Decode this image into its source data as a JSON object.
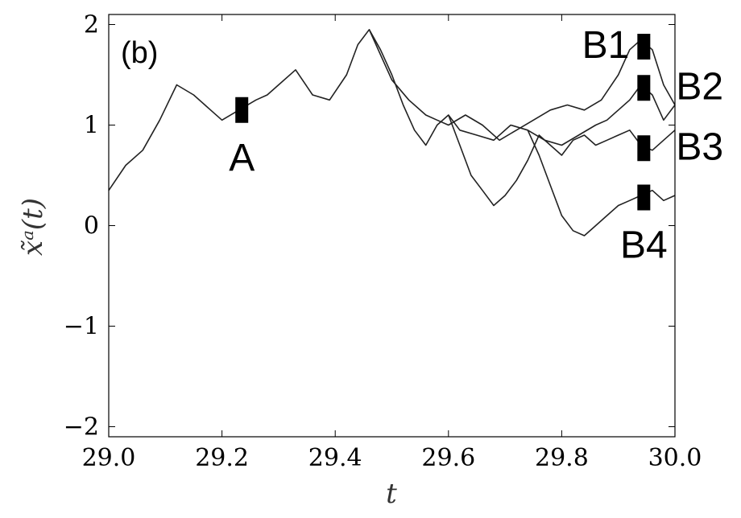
{
  "chart_data": {
    "type": "line",
    "panel_label": "(b)",
    "xlabel": "t",
    "ylabel": "x̃ᵃ(t)",
    "xlim": [
      29.0,
      30.0
    ],
    "ylim": [
      -2.1,
      2.1
    ],
    "x_ticks": [
      29.0,
      29.2,
      29.4,
      29.6,
      29.8,
      30.0
    ],
    "x_tick_labels": [
      "29.0",
      "29.2",
      "29.4",
      "29.6",
      "29.8",
      "30.0"
    ],
    "y_ticks": [
      -2,
      -1,
      0,
      1,
      2
    ],
    "y_tick_labels": [
      "−2",
      "−1",
      "0",
      "1",
      "2"
    ],
    "grid": false,
    "line_color": "#222222",
    "series": [
      {
        "x": [
          29.0,
          29.03,
          29.06,
          29.09,
          29.12,
          29.15,
          29.18,
          29.2,
          29.23,
          29.26,
          29.28,
          29.3,
          29.33,
          29.36,
          29.39,
          29.42,
          29.44,
          29.46,
          29.48,
          29.5,
          29.53,
          29.56,
          29.58,
          29.6,
          29.63,
          29.66,
          29.69,
          29.72,
          29.75,
          29.78,
          29.81,
          29.84,
          29.87,
          29.9,
          29.92,
          29.94,
          29.96,
          29.98,
          30.0
        ],
        "y": [
          0.35,
          0.6,
          0.75,
          1.05,
          1.4,
          1.3,
          1.15,
          1.05,
          1.15,
          1.25,
          1.3,
          1.4,
          1.55,
          1.3,
          1.25,
          1.5,
          1.8,
          1.95,
          1.7,
          1.45,
          1.25,
          1.1,
          1.05,
          1.0,
          1.1,
          1.0,
          0.85,
          0.95,
          1.05,
          1.15,
          1.2,
          1.15,
          1.25,
          1.5,
          1.75,
          1.85,
          1.75,
          1.4,
          1.2
        ]
      },
      {
        "x": [
          29.46,
          29.48,
          29.5,
          29.52,
          29.54,
          29.56,
          29.58,
          29.6,
          29.62,
          29.65,
          29.68,
          29.71,
          29.74,
          29.77,
          29.8,
          29.83,
          29.86,
          29.88,
          29.9,
          29.92,
          29.94,
          29.96,
          29.98,
          30.0
        ],
        "y": [
          1.95,
          1.75,
          1.5,
          1.2,
          0.95,
          0.8,
          1.0,
          1.1,
          0.95,
          0.9,
          0.85,
          1.0,
          0.95,
          0.85,
          0.8,
          0.9,
          1.0,
          1.05,
          1.15,
          1.25,
          1.4,
          1.3,
          1.05,
          1.2
        ]
      },
      {
        "x": [
          29.6,
          29.62,
          29.64,
          29.66,
          29.68,
          29.7,
          29.72,
          29.74,
          29.76,
          29.78,
          29.8,
          29.82,
          29.84,
          29.86,
          29.88,
          29.9,
          29.92,
          29.94,
          29.96,
          29.98,
          30.0
        ],
        "y": [
          1.1,
          0.8,
          0.5,
          0.35,
          0.2,
          0.3,
          0.45,
          0.65,
          0.9,
          0.8,
          0.7,
          0.85,
          0.9,
          0.8,
          0.85,
          0.9,
          0.95,
          0.8,
          0.75,
          0.85,
          0.95
        ]
      },
      {
        "x": [
          29.74,
          29.76,
          29.78,
          29.8,
          29.82,
          29.84,
          29.86,
          29.88,
          29.9,
          29.92,
          29.94,
          29.96,
          29.98,
          30.0
        ],
        "y": [
          0.95,
          0.7,
          0.4,
          0.1,
          -0.05,
          -0.1,
          0.0,
          0.1,
          0.2,
          0.25,
          0.3,
          0.35,
          0.25,
          0.3
        ]
      }
    ],
    "markers": [
      {
        "label": "A",
        "x": 29.235,
        "y": 1.15,
        "label_pos": "below"
      },
      {
        "label": "B1",
        "x": 29.945,
        "y": 1.78,
        "label_pos": "left"
      },
      {
        "label": "B2",
        "x": 29.945,
        "y": 1.37,
        "label_pos": "right"
      },
      {
        "label": "B3",
        "x": 29.945,
        "y": 0.77,
        "label_pos": "right"
      },
      {
        "label": "B4",
        "x": 29.945,
        "y": 0.28,
        "label_pos": "below"
      }
    ]
  }
}
